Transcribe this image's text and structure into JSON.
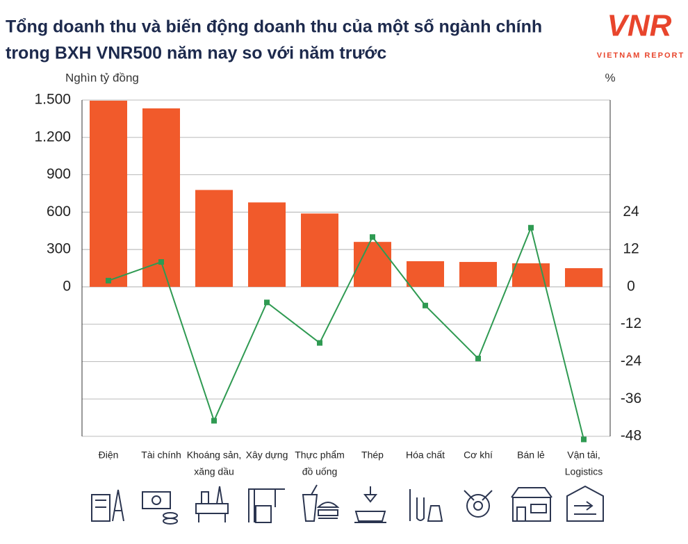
{
  "chart_data": {
    "type": "bar_line",
    "title": [
      "Tổng doanh thu và biến động doanh thu của một số ngành chính",
      "trong BXH VNR500 năm nay so với năm trước"
    ],
    "logo": {
      "mark": "VNR",
      "caption": "VIETNAM REPORT"
    },
    "y_label": "Nghìn tỷ đồng",
    "y2_label": "%",
    "categories": [
      [
        "Điện"
      ],
      [
        "Tài chính"
      ],
      [
        "Khoáng sản,",
        "xăng dầu"
      ],
      [
        "Xây dựng"
      ],
      [
        "Thực phẩm",
        "đồ uống"
      ],
      [
        "Thép"
      ],
      [
        "Hóa chất"
      ],
      [
        "Cơ khí"
      ],
      [
        "Bán lẻ"
      ],
      [
        "Vận tải,",
        "Logistics"
      ]
    ],
    "series": [
      {
        "type": "bar",
        "color": "#f15a2b",
        "values": [
          1495,
          1433,
          778,
          678,
          589,
          361,
          206,
          200,
          189,
          150
        ]
      },
      {
        "type": "line",
        "axis": "y2",
        "color": "#2f9a52",
        "values": [
          2,
          8,
          -43,
          -5,
          -18,
          16,
          -6,
          -23,
          19,
          -49
        ]
      }
    ],
    "ylim": [
      -1200,
      1500
    ],
    "yticks": [
      0,
      300,
      600,
      900,
      {
        "value": 1200,
        "label": "1.200"
      },
      {
        "value": 1500,
        "label": "1.500"
      }
    ],
    "y2lim": [
      -48,
      60
    ],
    "y2ticks": [
      -48,
      -36,
      -24,
      -12,
      0,
      12,
      24
    ],
    "grid": true
  }
}
